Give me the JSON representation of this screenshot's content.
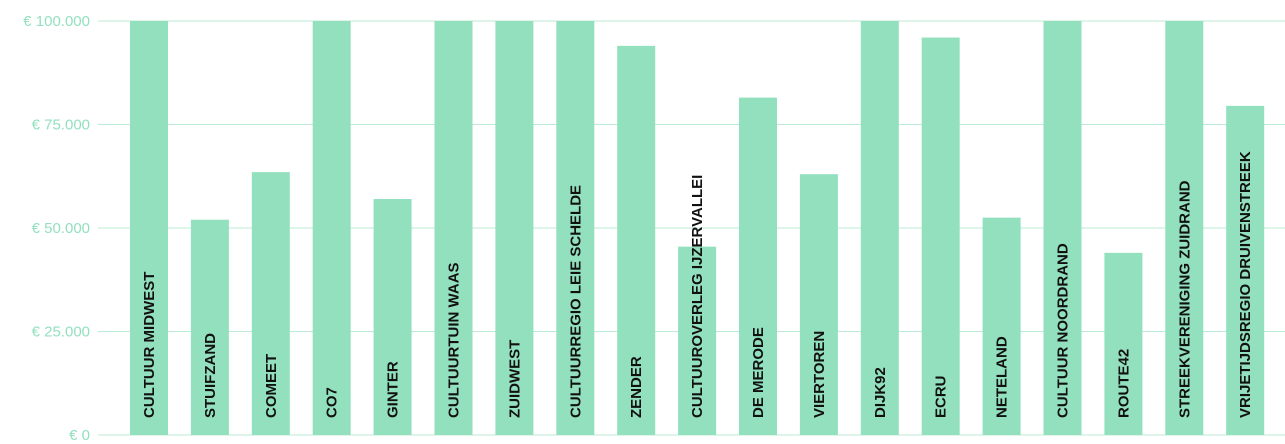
{
  "chart_data": {
    "type": "bar",
    "title": "",
    "xlabel": "",
    "ylabel": "",
    "ylim": [
      0,
      100000
    ],
    "yticks": [
      0,
      25000,
      50000,
      75000,
      100000
    ],
    "ytick_labels": [
      "€ 0",
      "€ 25.000",
      "€ 50.000",
      "€ 75.000",
      "€ 100.000"
    ],
    "grid": true,
    "categories": [
      "CULTUUR MIDWEST",
      "STUIFZAND",
      "COMEET",
      "CO7",
      "GINTER",
      "CULTUURTUIN WAAS",
      "ZUIDWEST",
      "CULTUURREGIO LEIE SCHELDE",
      "ZENDER",
      "CULTUUROVERLEG IJZERVALLEI",
      "DE MERODE",
      "VIERTOREN",
      "DIJK92",
      "ECRU",
      "NETELAND",
      "CULTUUR NOORDRAND",
      "ROUTE42",
      "STREEKVERENIGING ZUIDRAND",
      "VRIJETIJDSREGIO DRUIVENSTREEK"
    ],
    "values": [
      100000,
      52000,
      63500,
      100000,
      57000,
      100000,
      100000,
      100000,
      94000,
      45500,
      81500,
      63000,
      100000,
      96000,
      52500,
      100000,
      44000,
      100000,
      79500
    ],
    "colors": {
      "bar": "#93e0bf",
      "grid": "#bdebd6",
      "tick_text": "#93e0bf",
      "label_text": "#111111"
    }
  }
}
